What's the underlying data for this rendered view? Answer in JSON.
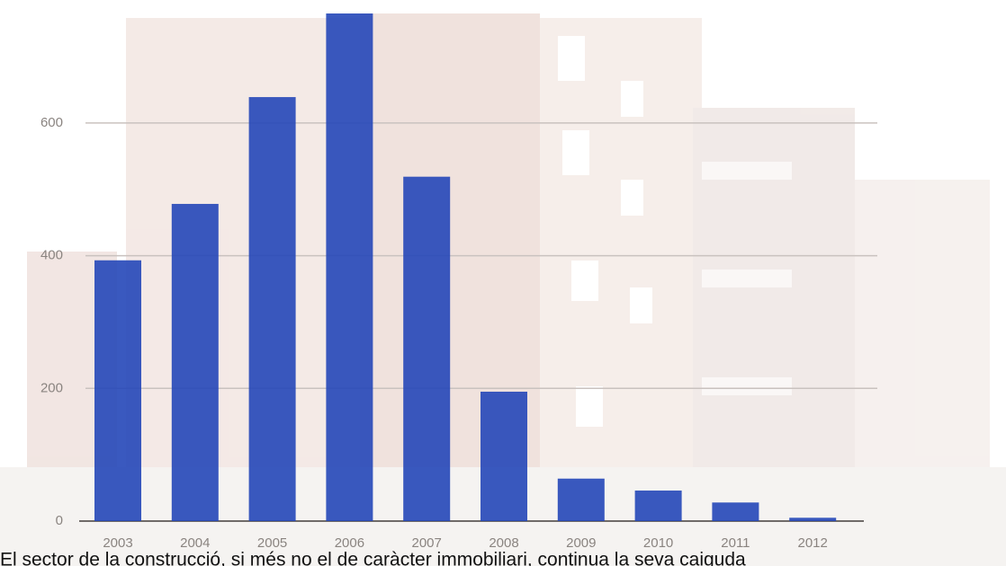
{
  "chart_data": {
    "type": "bar",
    "categories": [
      "2003",
      "2004",
      "2005",
      "2006",
      "2007",
      "2008",
      "2009",
      "2010",
      "2011",
      "2012"
    ],
    "values": [
      393,
      478,
      639,
      765,
      519,
      195,
      64,
      46,
      28,
      5
    ],
    "color": "#2547b8",
    "ylim": [
      0,
      765
    ],
    "yticks": [
      0,
      200,
      400,
      600
    ],
    "grid": true,
    "caption": "El sector de la construcció, si més no el de caràcter immobiliari, continua la seva caiguda"
  }
}
